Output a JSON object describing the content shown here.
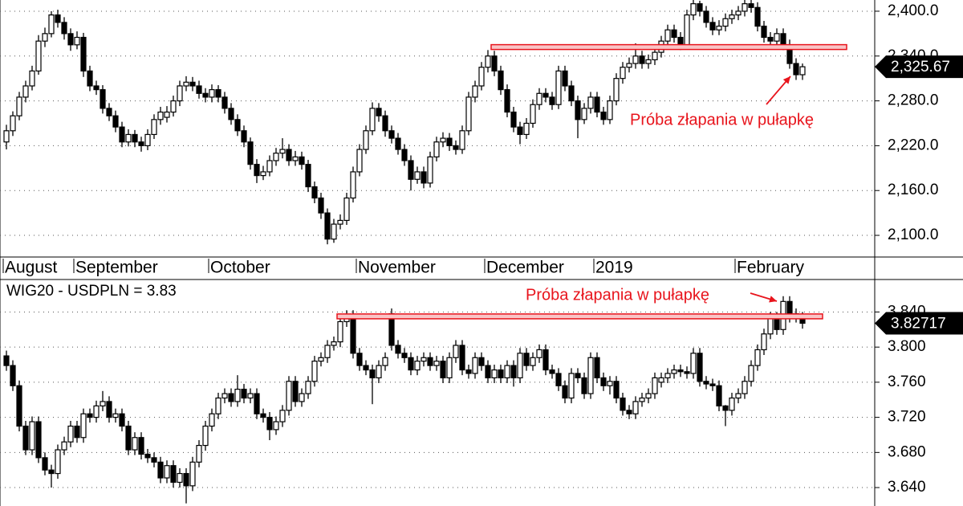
{
  "chart_data": [
    {
      "type": "candlestick",
      "categories": [
        "August",
        null,
        null,
        null,
        null,
        null,
        null,
        null,
        null,
        null,
        null,
        "September",
        null,
        null,
        null,
        null,
        null,
        null,
        null,
        null,
        null,
        null,
        null,
        null,
        null,
        null,
        null,
        null,
        null,
        null,
        null,
        null,
        "October",
        null,
        null,
        null,
        null,
        null,
        null,
        null,
        null,
        null,
        null,
        null,
        null,
        null,
        null,
        null,
        null,
        null,
        null,
        null,
        null,
        null,
        null,
        "November",
        null,
        null,
        null,
        null,
        null,
        null,
        null,
        null,
        null,
        null,
        null,
        null,
        null,
        null,
        null,
        null,
        null,
        null,
        null,
        "December",
        null,
        null,
        null,
        null,
        null,
        null,
        null,
        null,
        null,
        null,
        null,
        null,
        null,
        null,
        null,
        null,
        "2019",
        null,
        null,
        null,
        null,
        null,
        null,
        null,
        null,
        null,
        null,
        null,
        null,
        null,
        null,
        null,
        null,
        null,
        null,
        null,
        null,
        null,
        "February",
        null,
        null,
        null,
        null,
        null,
        null,
        null,
        null,
        null,
        null
      ],
      "open": [
        2225,
        2240,
        2260,
        2285,
        2300,
        2320,
        2360,
        2370,
        2395,
        2385,
        2370,
        2355,
        2365,
        2320,
        2300,
        2295,
        2270,
        2260,
        2245,
        2225,
        2235,
        2225,
        2220,
        2235,
        2255,
        2258,
        2265,
        2280,
        2300,
        2305,
        2300,
        2290,
        2285,
        2295,
        2285,
        2270,
        2255,
        2240,
        2225,
        2195,
        2180,
        2185,
        2200,
        2210,
        2215,
        2200,
        2205,
        2195,
        2165,
        2150,
        2130,
        2095,
        2115,
        2120,
        2150,
        2185,
        2215,
        2240,
        2270,
        2260,
        2240,
        2230,
        2215,
        2200,
        2175,
        2185,
        2170,
        2205,
        2225,
        2230,
        2220,
        2215,
        2240,
        2285,
        2300,
        2325,
        2340,
        2320,
        2295,
        2265,
        2245,
        2235,
        2250,
        2275,
        2290,
        2285,
        2275,
        2320,
        2300,
        2280,
        2255,
        2270,
        2285,
        2265,
        2255,
        2280,
        2310,
        2325,
        2330,
        2340,
        2330,
        2335,
        2345,
        2360,
        2375,
        2365,
        2355,
        2395,
        2410,
        2400,
        2385,
        2375,
        2380,
        2390,
        2395,
        2400,
        2410,
        2405,
        2380,
        2365,
        2360,
        2370,
        2355,
        2330,
        2315
      ],
      "high": [
        2248,
        2266,
        2292,
        2307,
        2327,
        2368,
        2378,
        2400,
        2402,
        2392,
        2377,
        2373,
        2371,
        2327,
        2307,
        2301,
        2277,
        2267,
        2252,
        2242,
        2241,
        2232,
        2242,
        2262,
        2272,
        2273,
        2287,
        2307,
        2313,
        2312,
        2307,
        2297,
        2302,
        2301,
        2292,
        2277,
        2262,
        2247,
        2231,
        2202,
        2193,
        2207,
        2217,
        2230,
        2222,
        2213,
        2212,
        2201,
        2172,
        2157,
        2136,
        2122,
        2128,
        2157,
        2192,
        2222,
        2247,
        2278,
        2277,
        2267,
        2247,
        2237,
        2222,
        2207,
        2192,
        2192,
        2212,
        2232,
        2238,
        2237,
        2227,
        2247,
        2292,
        2307,
        2332,
        2348,
        2347,
        2327,
        2302,
        2272,
        2252,
        2257,
        2282,
        2297,
        2297,
        2292,
        2327,
        2327,
        2307,
        2287,
        2277,
        2292,
        2292,
        2272,
        2287,
        2317,
        2332,
        2338,
        2357,
        2347,
        2342,
        2352,
        2367,
        2382,
        2382,
        2372,
        2402,
        2415,
        2414,
        2407,
        2392,
        2388,
        2397,
        2402,
        2407,
        2415,
        2415,
        2412,
        2387,
        2372,
        2377,
        2377,
        2362,
        2337,
        2330
      ],
      "low": [
        2215,
        2233,
        2254,
        2278,
        2294,
        2315,
        2352,
        2365,
        2378,
        2362,
        2347,
        2349,
        2312,
        2293,
        2288,
        2263,
        2253,
        2238,
        2218,
        2219,
        2218,
        2212,
        2214,
        2229,
        2248,
        2251,
        2259,
        2273,
        2293,
        2293,
        2283,
        2278,
        2278,
        2278,
        2263,
        2248,
        2233,
        2218,
        2188,
        2170,
        2174,
        2179,
        2193,
        2203,
        2193,
        2193,
        2188,
        2158,
        2143,
        2122,
        2088,
        2090,
        2108,
        2114,
        2144,
        2179,
        2209,
        2234,
        2252,
        2232,
        2223,
        2208,
        2193,
        2160,
        2169,
        2163,
        2164,
        2199,
        2218,
        2213,
        2208,
        2209,
        2234,
        2278,
        2294,
        2318,
        2313,
        2288,
        2258,
        2238,
        2222,
        2229,
        2244,
        2268,
        2278,
        2268,
        2269,
        2293,
        2273,
        2230,
        2249,
        2263,
        2258,
        2248,
        2249,
        2274,
        2303,
        2318,
        2323,
        2323,
        2323,
        2328,
        2338,
        2353,
        2358,
        2348,
        2349,
        2388,
        2393,
        2378,
        2368,
        2368,
        2373,
        2383,
        2388,
        2393,
        2398,
        2373,
        2358,
        2353,
        2353,
        2348,
        2323,
        2308,
        2308
      ],
      "close": [
        2240,
        2260,
        2285,
        2300,
        2320,
        2360,
        2370,
        2395,
        2385,
        2370,
        2355,
        2365,
        2320,
        2300,
        2295,
        2270,
        2260,
        2245,
        2225,
        2235,
        2225,
        2220,
        2235,
        2255,
        2265,
        2265,
        2280,
        2300,
        2305,
        2300,
        2290,
        2285,
        2295,
        2285,
        2270,
        2255,
        2240,
        2225,
        2195,
        2180,
        2185,
        2200,
        2210,
        2215,
        2200,
        2205,
        2195,
        2165,
        2150,
        2130,
        2095,
        2115,
        2120,
        2150,
        2185,
        2215,
        2240,
        2270,
        2260,
        2240,
        2230,
        2215,
        2200,
        2175,
        2185,
        2170,
        2205,
        2225,
        2230,
        2220,
        2215,
        2240,
        2285,
        2300,
        2325,
        2340,
        2320,
        2295,
        2265,
        2245,
        2235,
        2250,
        2275,
        2290,
        2285,
        2275,
        2320,
        2300,
        2280,
        2255,
        2270,
        2285,
        2265,
        2255,
        2280,
        2310,
        2325,
        2330,
        2340,
        2330,
        2335,
        2345,
        2360,
        2375,
        2365,
        2355,
        2395,
        2410,
        2400,
        2385,
        2375,
        2380,
        2390,
        2395,
        2400,
        2410,
        2405,
        2380,
        2365,
        2360,
        2370,
        2355,
        2330,
        2315,
        2325.67
      ],
      "last_label": "2,325.67",
      "ylim": [
        2071,
        2415
      ],
      "yticks": [
        {
          "value": 2100,
          "label": "2,100.0"
        },
        {
          "value": 2160,
          "label": "2,160.0"
        },
        {
          "value": 2220,
          "label": "2,220.0"
        },
        {
          "value": 2280,
          "label": "2,280.0"
        },
        {
          "value": 2340,
          "label": "2,340.0"
        },
        {
          "value": 2400,
          "label": "2,400.0"
        }
      ],
      "grid": true,
      "band": {
        "value": 2352,
        "start": 76
      },
      "annotation": "Próba złapania w pułapkę",
      "annotation_color": "#e8141c"
    },
    {
      "type": "candlestick",
      "title": "WIG20 - USDPLN = 3.83",
      "open": [
        3.79,
        3.779,
        3.756,
        3.71,
        3.683,
        3.715,
        3.674,
        3.66,
        3.656,
        3.683,
        3.692,
        3.71,
        3.697,
        3.724,
        3.72,
        3.733,
        3.738,
        3.72,
        3.724,
        3.71,
        3.683,
        3.697,
        3.678,
        3.674,
        3.669,
        3.651,
        3.665,
        3.646,
        3.656,
        3.642,
        3.669,
        3.688,
        3.71,
        3.724,
        3.742,
        3.747,
        3.738,
        3.752,
        3.742,
        3.747,
        3.724,
        3.72,
        3.706,
        3.715,
        3.728,
        3.761,
        3.738,
        3.747,
        3.761,
        3.784,
        3.788,
        3.802,
        3.806,
        3.829,
        3.836,
        3.793,
        3.779,
        3.774,
        3.765,
        3.779,
        3.838,
        3.802,
        3.793,
        3.788,
        3.774,
        3.784,
        3.788,
        3.779,
        3.784,
        3.765,
        3.788,
        3.802,
        3.774,
        3.77,
        3.788,
        3.779,
        3.765,
        3.774,
        3.765,
        3.779,
        3.765,
        3.793,
        3.779,
        3.788,
        3.797,
        3.774,
        3.77,
        3.756,
        3.742,
        3.77,
        3.765,
        3.747,
        3.788,
        3.765,
        3.756,
        3.761,
        3.742,
        3.728,
        3.724,
        3.738,
        3.742,
        3.747,
        3.76,
        3.765,
        3.77,
        3.774,
        3.772,
        3.77,
        3.793,
        3.761,
        3.758,
        3.756,
        3.733,
        3.728,
        3.742,
        3.747,
        3.761,
        3.779,
        3.797,
        3.815,
        3.834,
        3.82,
        3.852,
        3.838,
        3.834
      ],
      "high": [
        3.796,
        3.785,
        3.762,
        3.716,
        3.721,
        3.721,
        3.68,
        3.666,
        3.689,
        3.698,
        3.716,
        3.716,
        3.73,
        3.73,
        3.739,
        3.75,
        3.744,
        3.73,
        3.73,
        3.716,
        3.703,
        3.703,
        3.684,
        3.68,
        3.675,
        3.671,
        3.671,
        3.662,
        3.662,
        3.675,
        3.694,
        3.716,
        3.73,
        3.748,
        3.753,
        3.753,
        3.768,
        3.758,
        3.753,
        3.753,
        3.73,
        3.726,
        3.721,
        3.734,
        3.767,
        3.767,
        3.753,
        3.767,
        3.79,
        3.794,
        3.808,
        3.812,
        3.835,
        3.842,
        3.842,
        3.799,
        3.785,
        3.78,
        3.785,
        3.794,
        3.844,
        3.808,
        3.799,
        3.794,
        3.79,
        3.794,
        3.794,
        3.79,
        3.79,
        3.794,
        3.808,
        3.808,
        3.78,
        3.794,
        3.794,
        3.785,
        3.78,
        3.78,
        3.785,
        3.785,
        3.799,
        3.799,
        3.794,
        3.803,
        3.803,
        3.78,
        3.776,
        3.762,
        3.776,
        3.776,
        3.771,
        3.794,
        3.794,
        3.771,
        3.767,
        3.767,
        3.748,
        3.734,
        3.744,
        3.748,
        3.753,
        3.771,
        3.771,
        3.776,
        3.78,
        3.78,
        3.778,
        3.799,
        3.799,
        3.767,
        3.764,
        3.762,
        3.734,
        3.748,
        3.753,
        3.767,
        3.785,
        3.803,
        3.821,
        3.84,
        3.84,
        3.858,
        3.858,
        3.844,
        3.84
      ],
      "low": [
        3.773,
        3.75,
        3.704,
        3.677,
        3.677,
        3.668,
        3.654,
        3.64,
        3.65,
        3.677,
        3.686,
        3.691,
        3.691,
        3.714,
        3.714,
        3.727,
        3.714,
        3.714,
        3.704,
        3.677,
        3.677,
        3.672,
        3.668,
        3.663,
        3.645,
        3.645,
        3.64,
        3.64,
        3.622,
        3.636,
        3.663,
        3.682,
        3.704,
        3.718,
        3.736,
        3.732,
        3.732,
        3.736,
        3.736,
        3.718,
        3.714,
        3.694,
        3.7,
        3.709,
        3.722,
        3.732,
        3.732,
        3.741,
        3.755,
        3.778,
        3.782,
        3.796,
        3.8,
        3.823,
        3.787,
        3.773,
        3.768,
        3.735,
        3.759,
        3.773,
        3.796,
        3.787,
        3.782,
        3.768,
        3.768,
        3.778,
        3.773,
        3.773,
        3.759,
        3.759,
        3.782,
        3.768,
        3.764,
        3.764,
        3.773,
        3.759,
        3.759,
        3.759,
        3.759,
        3.755,
        3.759,
        3.773,
        3.773,
        3.782,
        3.768,
        3.764,
        3.75,
        3.736,
        3.736,
        3.759,
        3.741,
        3.741,
        3.759,
        3.75,
        3.746,
        3.736,
        3.722,
        3.718,
        3.718,
        3.732,
        3.736,
        3.741,
        3.754,
        3.759,
        3.764,
        3.766,
        3.764,
        3.764,
        3.755,
        3.752,
        3.75,
        3.727,
        3.71,
        3.722,
        3.736,
        3.741,
        3.755,
        3.773,
        3.791,
        3.809,
        3.814,
        3.814,
        3.828,
        3.828,
        3.821
      ],
      "close": [
        3.779,
        3.756,
        3.71,
        3.683,
        3.715,
        3.674,
        3.66,
        3.656,
        3.683,
        3.692,
        3.71,
        3.697,
        3.724,
        3.72,
        3.733,
        3.738,
        3.72,
        3.724,
        3.71,
        3.683,
        3.697,
        3.678,
        3.674,
        3.669,
        3.651,
        3.665,
        3.646,
        3.656,
        3.642,
        3.669,
        3.688,
        3.71,
        3.724,
        3.742,
        3.747,
        3.738,
        3.752,
        3.742,
        3.747,
        3.724,
        3.72,
        3.706,
        3.715,
        3.728,
        3.761,
        3.738,
        3.747,
        3.761,
        3.784,
        3.788,
        3.802,
        3.806,
        3.829,
        3.836,
        3.793,
        3.779,
        3.774,
        3.765,
        3.779,
        3.788,
        3.802,
        3.793,
        3.788,
        3.774,
        3.784,
        3.788,
        3.779,
        3.784,
        3.765,
        3.788,
        3.802,
        3.774,
        3.77,
        3.788,
        3.779,
        3.765,
        3.774,
        3.765,
        3.779,
        3.765,
        3.793,
        3.779,
        3.788,
        3.797,
        3.774,
        3.77,
        3.756,
        3.742,
        3.77,
        3.765,
        3.747,
        3.788,
        3.765,
        3.756,
        3.761,
        3.742,
        3.728,
        3.724,
        3.738,
        3.742,
        3.747,
        3.765,
        3.765,
        3.77,
        3.774,
        3.772,
        3.77,
        3.793,
        3.761,
        3.758,
        3.756,
        3.733,
        3.728,
        3.742,
        3.747,
        3.761,
        3.779,
        3.797,
        3.815,
        3.834,
        3.82,
        3.852,
        3.834,
        3.834,
        3.82717
      ],
      "last_label": "3.82717",
      "ylim": [
        3.619,
        3.877
      ],
      "yticks": [
        {
          "value": 3.64,
          "label": "3.640"
        },
        {
          "value": 3.68,
          "label": "3.680"
        },
        {
          "value": 3.72,
          "label": "3.720"
        },
        {
          "value": 3.76,
          "label": "3.760"
        },
        {
          "value": 3.8,
          "label": "3.800"
        },
        {
          "value": 3.84,
          "label": "3.840"
        }
      ],
      "grid": true,
      "band": {
        "value": 3.835,
        "start": 52
      },
      "annotation": "Próba złapania w pułapkę",
      "annotation_color": "#e8141c"
    }
  ]
}
